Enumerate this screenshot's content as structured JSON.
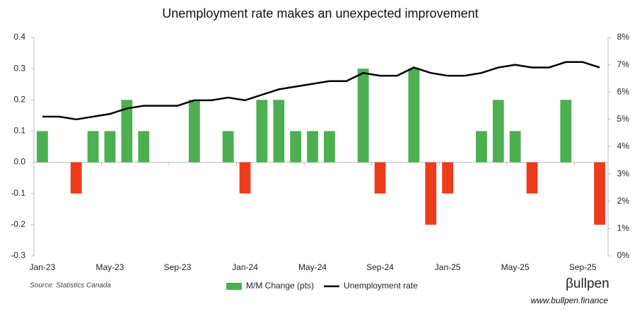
{
  "chart_data": {
    "type": "bar",
    "title": "Unemployment rate makes an unexpected improvement",
    "source": "Source: Statistics Canada",
    "brand": "βullpen",
    "website": "www.bullpen.finance",
    "categories": [
      "Jan-23",
      null,
      null,
      null,
      "May-23",
      null,
      null,
      null,
      "Sep-23",
      null,
      null,
      null,
      "Jan-24",
      null,
      null,
      null,
      "May-24",
      null,
      null,
      null,
      "Sep-24",
      null,
      null,
      null,
      "Jan-25",
      null,
      null,
      null,
      "May-25",
      null,
      null,
      null,
      "Sep-25",
      null
    ],
    "series": [
      {
        "name": "M/M Change (pts)",
        "type": "bar",
        "color": "#4caf50",
        "negative_color": "#ee3b1c",
        "values": [
          0.1,
          0,
          -0.1,
          0.1,
          0.1,
          0.2,
          0.1,
          0,
          0,
          0.2,
          0,
          0.1,
          -0.1,
          0.2,
          0.2,
          0.1,
          0.1,
          0.1,
          0,
          0.3,
          -0.1,
          0,
          0.3,
          -0.2,
          -0.1,
          0,
          0.1,
          0.2,
          0.1,
          -0.1,
          0,
          0.2,
          0,
          -0.2
        ]
      },
      {
        "name": "Unemployment rate",
        "type": "line",
        "color": "#000000",
        "axis": "y2",
        "values": [
          5.1,
          5.1,
          5.0,
          5.1,
          5.2,
          5.4,
          5.5,
          5.5,
          5.5,
          5.7,
          5.7,
          5.8,
          5.7,
          5.9,
          6.1,
          6.2,
          6.3,
          6.4,
          6.4,
          6.7,
          6.6,
          6.6,
          6.9,
          6.7,
          6.6,
          6.6,
          6.7,
          6.9,
          7.0,
          6.9,
          6.9,
          7.1,
          7.1,
          6.9
        ]
      }
    ],
    "ylim": [
      -0.3,
      0.4
    ],
    "yticks": [
      -0.3,
      -0.2,
      -0.1,
      {
        "value": 0,
        "label": "0.0"
      },
      0.1,
      0.2,
      0.3,
      0.4
    ],
    "y2lim": [
      0,
      8
    ],
    "y2ticks": [
      {
        "value": 0,
        "label": "0%"
      },
      {
        "value": 1,
        "label": "1%"
      },
      {
        "value": 2,
        "label": "2%"
      },
      {
        "value": 3,
        "label": "3%"
      },
      {
        "value": 4,
        "label": "4%"
      },
      {
        "value": 5,
        "label": "5%"
      },
      {
        "value": 6,
        "label": "6%"
      },
      {
        "value": 7,
        "label": "7%"
      },
      {
        "value": 8,
        "label": "8%"
      }
    ],
    "legend": "bottom"
  }
}
